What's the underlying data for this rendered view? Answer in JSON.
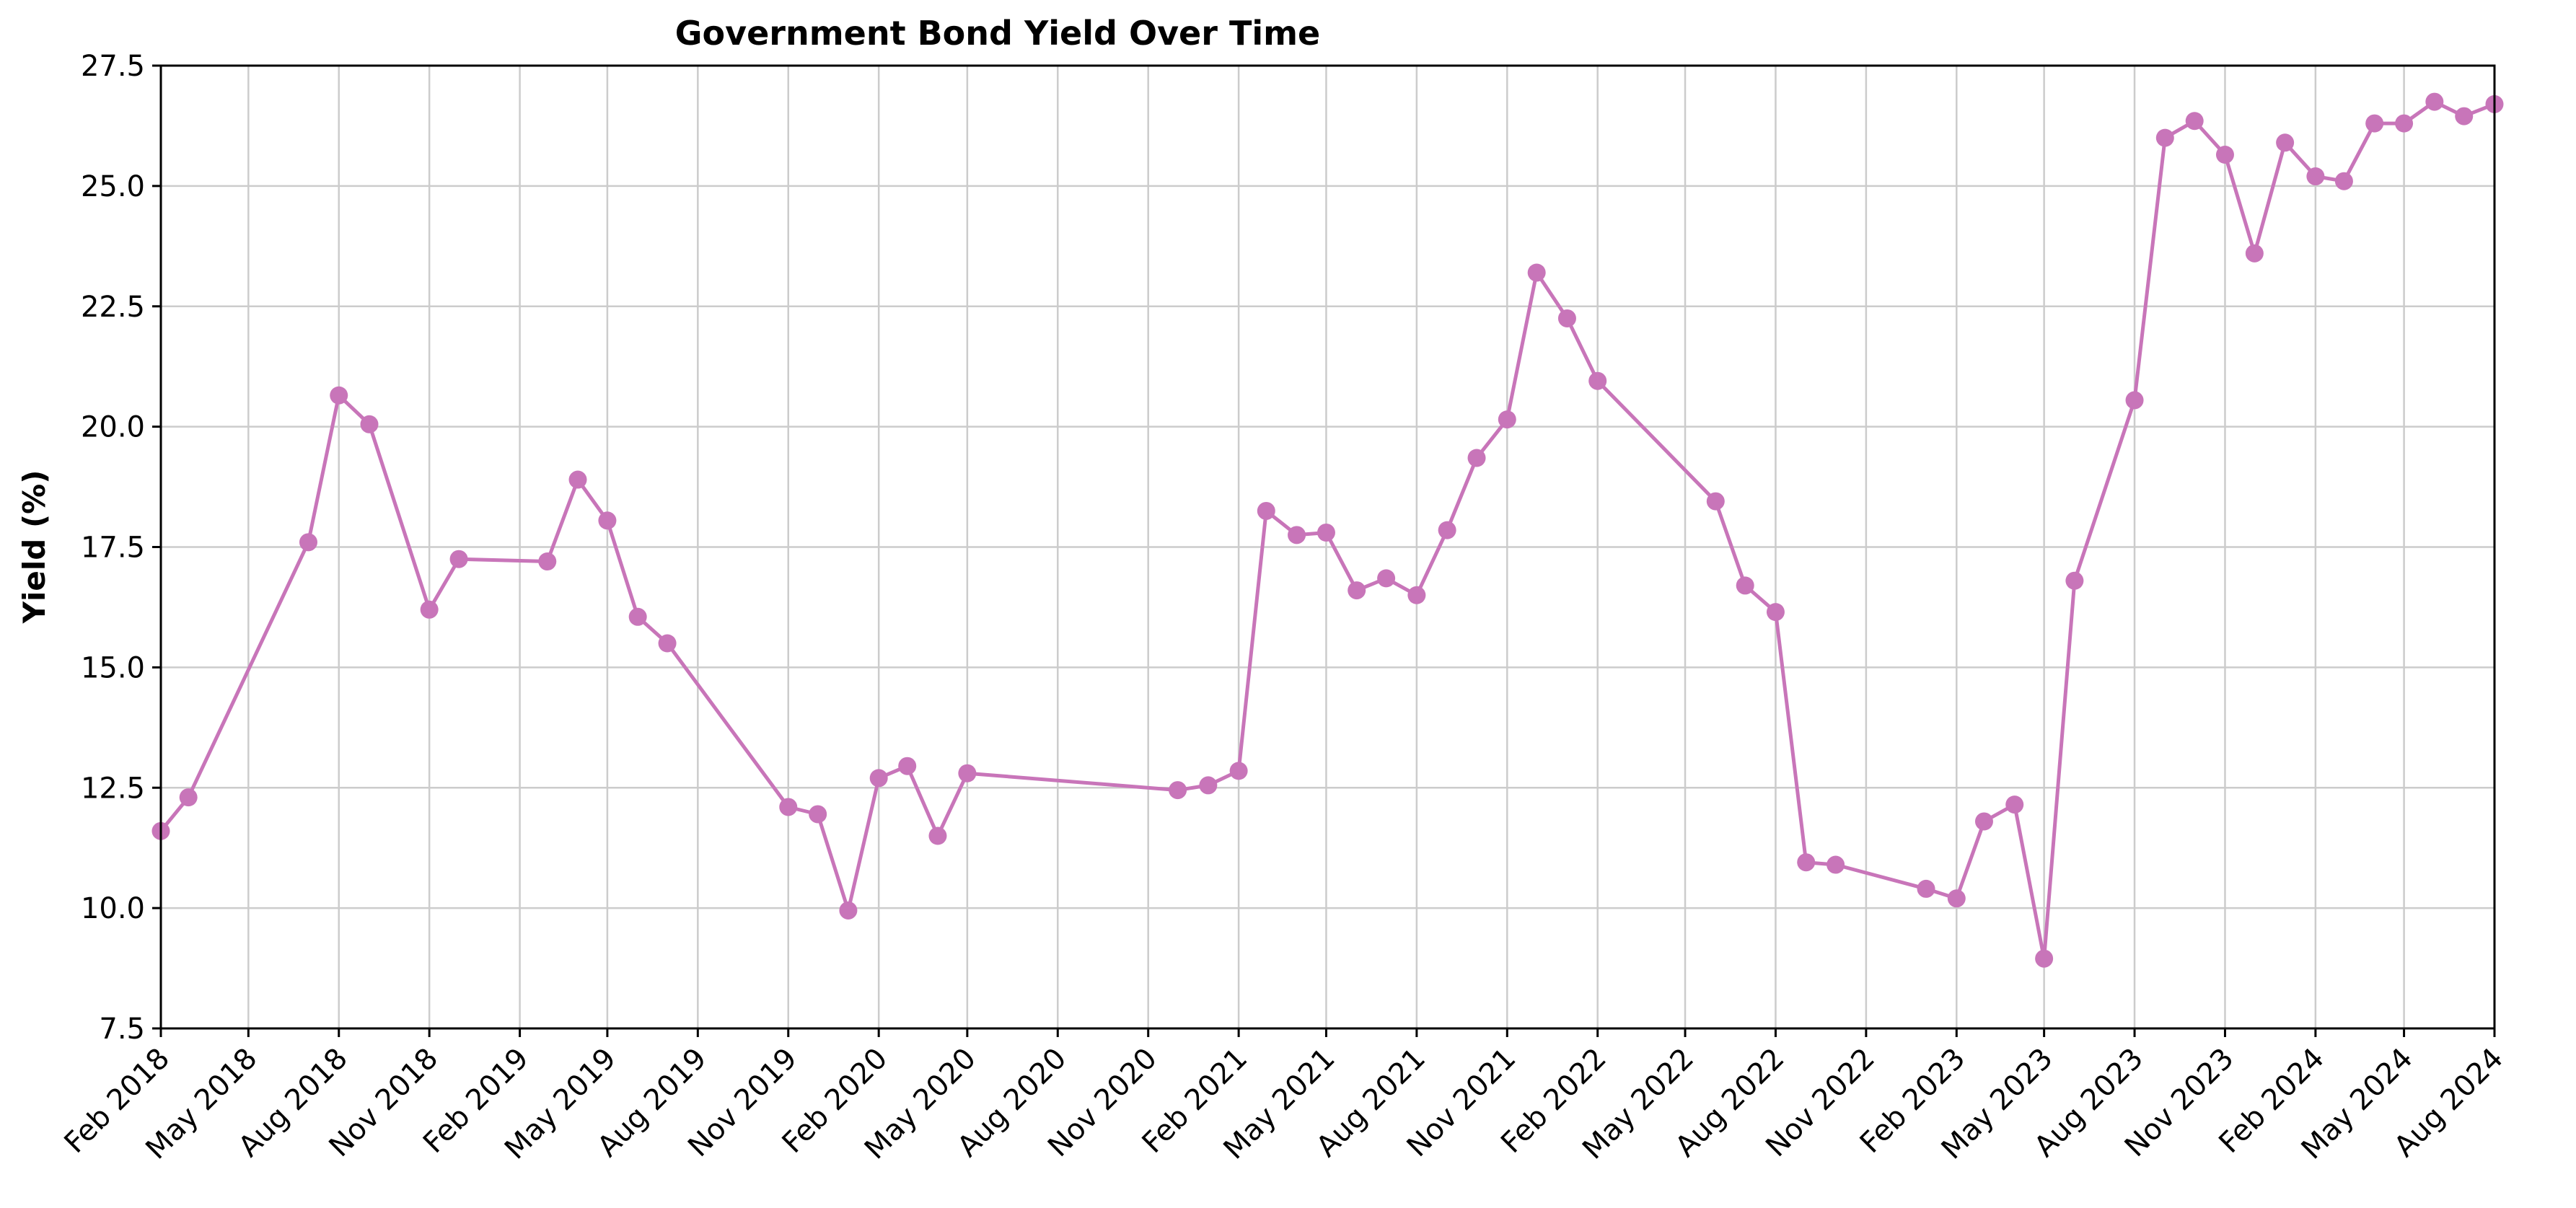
{
  "chart_data": {
    "type": "line",
    "title": "Government Bond Yield Over Time",
    "xlabel": "",
    "ylabel": "Yield (%)",
    "ylim": [
      7.5,
      27.5
    ],
    "xlim": [
      "2018-02-01",
      "2024-08-01"
    ],
    "yticks": [
      "7.5",
      "10.0",
      "12.5",
      "15.0",
      "17.5",
      "20.0",
      "22.5",
      "25.0",
      "27.5"
    ],
    "xticks": [
      {
        "date": "2018-02-01",
        "label": "Feb 2018"
      },
      {
        "date": "2018-05-01",
        "label": "May 2018"
      },
      {
        "date": "2018-08-01",
        "label": "Aug 2018"
      },
      {
        "date": "2018-11-01",
        "label": "Nov 2018"
      },
      {
        "date": "2019-02-01",
        "label": "Feb 2019"
      },
      {
        "date": "2019-05-01",
        "label": "May 2019"
      },
      {
        "date": "2019-08-01",
        "label": "Aug 2019"
      },
      {
        "date": "2019-11-01",
        "label": "Nov 2019"
      },
      {
        "date": "2020-02-01",
        "label": "Feb 2020"
      },
      {
        "date": "2020-05-01",
        "label": "May 2020"
      },
      {
        "date": "2020-08-01",
        "label": "Aug 2020"
      },
      {
        "date": "2020-11-01",
        "label": "Nov 2020"
      },
      {
        "date": "2021-02-01",
        "label": "Feb 2021"
      },
      {
        "date": "2021-05-01",
        "label": "May 2021"
      },
      {
        "date": "2021-08-01",
        "label": "Aug 2021"
      },
      {
        "date": "2021-11-01",
        "label": "Nov 2021"
      },
      {
        "date": "2022-02-01",
        "label": "Feb 2022"
      },
      {
        "date": "2022-05-01",
        "label": "May 2022"
      },
      {
        "date": "2022-08-01",
        "label": "Aug 2022"
      },
      {
        "date": "2022-11-01",
        "label": "Nov 2022"
      },
      {
        "date": "2023-02-01",
        "label": "Feb 2023"
      },
      {
        "date": "2023-05-01",
        "label": "May 2023"
      },
      {
        "date": "2023-08-01",
        "label": "Aug 2023"
      },
      {
        "date": "2023-11-01",
        "label": "Nov 2023"
      },
      {
        "date": "2024-02-01",
        "label": "Feb 2024"
      },
      {
        "date": "2024-05-01",
        "label": "May 2024"
      },
      {
        "date": "2024-08-01",
        "label": "Aug 2024"
      }
    ],
    "grid": true,
    "line_color": "#c875b9",
    "series": [
      {
        "points": [
          {
            "x": "2018-02-01",
            "y": 11.6
          },
          {
            "x": "2018-03-01",
            "y": 12.3
          },
          {
            "x": "2018-07-01",
            "y": 17.6
          },
          {
            "x": "2018-08-01",
            "y": 20.65
          },
          {
            "x": "2018-09-01",
            "y": 20.05
          },
          {
            "x": "2018-11-01",
            "y": 16.2
          },
          {
            "x": "2018-12-01",
            "y": 17.25
          },
          {
            "x": "2019-03-01",
            "y": 17.2
          },
          {
            "x": "2019-04-01",
            "y": 18.9
          },
          {
            "x": "2019-05-01",
            "y": 18.05
          },
          {
            "x": "2019-06-01",
            "y": 16.05
          },
          {
            "x": "2019-07-01",
            "y": 15.5
          },
          {
            "x": "2019-11-01",
            "y": 12.1
          },
          {
            "x": "2019-12-01",
            "y": 11.95
          },
          {
            "x": "2020-01-01",
            "y": 9.95
          },
          {
            "x": "2020-02-01",
            "y": 12.7
          },
          {
            "x": "2020-03-01",
            "y": 12.95
          },
          {
            "x": "2020-04-01",
            "y": 11.5
          },
          {
            "x": "2020-05-01",
            "y": 12.8
          },
          {
            "x": "2020-12-01",
            "y": 12.45
          },
          {
            "x": "2021-01-01",
            "y": 12.55
          },
          {
            "x": "2021-02-01",
            "y": 12.85
          },
          {
            "x": "2021-03-01",
            "y": 18.25
          },
          {
            "x": "2021-04-01",
            "y": 17.75
          },
          {
            "x": "2021-05-01",
            "y": 17.8
          },
          {
            "x": "2021-06-01",
            "y": 16.6
          },
          {
            "x": "2021-07-01",
            "y": 16.85
          },
          {
            "x": "2021-08-01",
            "y": 16.5
          },
          {
            "x": "2021-09-01",
            "y": 17.85
          },
          {
            "x": "2021-10-01",
            "y": 19.35
          },
          {
            "x": "2021-11-01",
            "y": 20.15
          },
          {
            "x": "2021-12-01",
            "y": 23.2
          },
          {
            "x": "2022-01-01",
            "y": 22.25
          },
          {
            "x": "2022-02-01",
            "y": 20.95
          },
          {
            "x": "2022-06-01",
            "y": 18.45
          },
          {
            "x": "2022-07-01",
            "y": 16.7
          },
          {
            "x": "2022-08-01",
            "y": 16.15
          },
          {
            "x": "2022-09-01",
            "y": 10.95
          },
          {
            "x": "2022-10-01",
            "y": 10.9
          },
          {
            "x": "2023-01-01",
            "y": 10.4
          },
          {
            "x": "2023-02-01",
            "y": 10.2
          },
          {
            "x": "2023-03-01",
            "y": 11.8
          },
          {
            "x": "2023-04-01",
            "y": 12.15
          },
          {
            "x": "2023-05-01",
            "y": 8.95
          },
          {
            "x": "2023-06-01",
            "y": 16.8
          },
          {
            "x": "2023-08-01",
            "y": 20.55
          },
          {
            "x": "2023-09-01",
            "y": 26.0
          },
          {
            "x": "2023-10-01",
            "y": 26.35
          },
          {
            "x": "2023-11-01",
            "y": 25.65
          },
          {
            "x": "2023-12-01",
            "y": 23.6
          },
          {
            "x": "2024-01-01",
            "y": 25.9
          },
          {
            "x": "2024-02-01",
            "y": 25.2
          },
          {
            "x": "2024-03-01",
            "y": 25.1
          },
          {
            "x": "2024-04-01",
            "y": 26.3
          },
          {
            "x": "2024-05-01",
            "y": 26.3
          },
          {
            "x": "2024-06-01",
            "y": 26.75
          },
          {
            "x": "2024-07-01",
            "y": 26.45
          },
          {
            "x": "2024-08-01",
            "y": 26.7
          }
        ]
      }
    ]
  }
}
